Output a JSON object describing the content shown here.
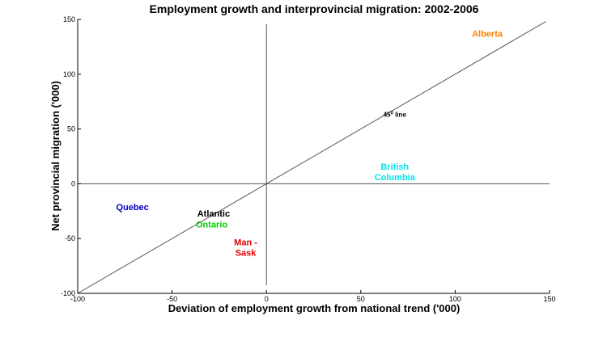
{
  "chart_data": {
    "type": "scatter",
    "title": "Employment growth and interprovincial migration: 2002-2006",
    "xlabel": "Deviation of employment growth from national trend ('000)",
    "ylabel": "Net provincial migration ('000)",
    "xlim": [
      -100,
      150
    ],
    "ylim": [
      -100,
      150
    ],
    "xticks": [
      "-100",
      "-50",
      "0",
      "50",
      "100",
      "150"
    ],
    "yticks": [
      "-100",
      "-50",
      "0",
      "50",
      "100",
      "150"
    ],
    "grid": false,
    "points": [
      {
        "lines": [
          "Alberta"
        ],
        "x": 117,
        "y": 137,
        "color": "#ff7f00"
      },
      {
        "lines": [
          "British",
          "Columbia"
        ],
        "x": 68,
        "y": 11,
        "color": "#00e5ee"
      },
      {
        "lines": [
          "Quebec"
        ],
        "x": -71,
        "y": -21,
        "color": "#0000cc"
      },
      {
        "lines": [
          "Atlantic"
        ],
        "x": -28,
        "y": -27,
        "color": "#000000"
      },
      {
        "lines": [
          "Ontario"
        ],
        "x": -29,
        "y": -37,
        "color": "#00cc00"
      },
      {
        "lines": [
          "Man -",
          "Sask"
        ],
        "x": -11,
        "y": -58,
        "color": "#e00000"
      }
    ],
    "reference_line": {
      "label": "45",
      "label_sup": "0",
      "label_suffix": " line",
      "at_x": 68,
      "at_y": 61
    }
  }
}
